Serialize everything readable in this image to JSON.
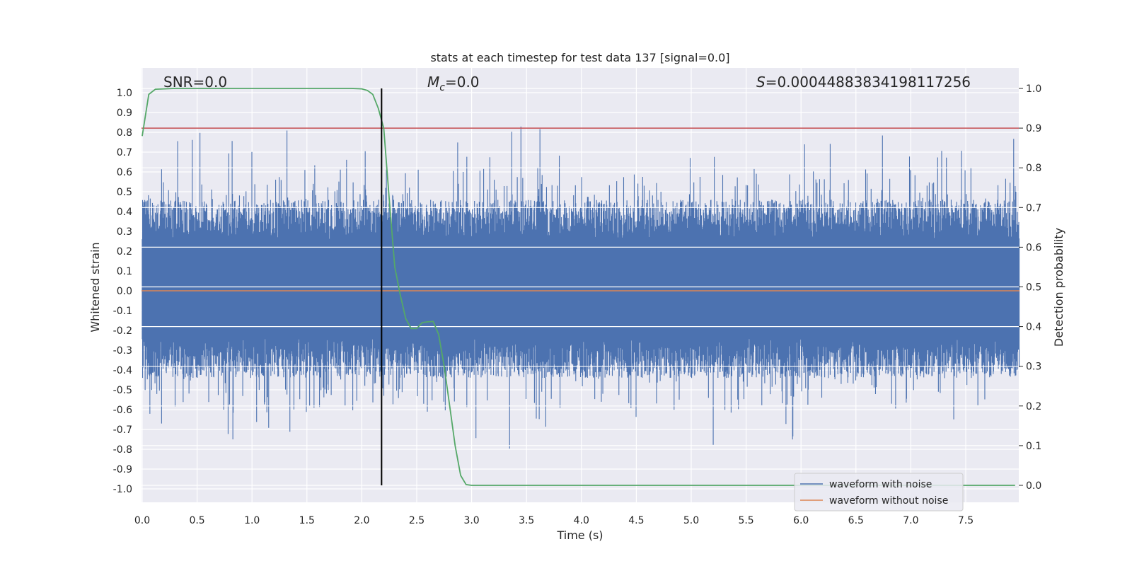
{
  "chart_data": {
    "type": "line",
    "title": "stats at each timestep for test data 137 [signal=0.0]",
    "xlabel": "Time (s)",
    "ylabel": "Whitened strain",
    "ylabel_right": "Detection probability",
    "xlim": [
      0,
      8
    ],
    "ylim": [
      -1.05,
      1.05
    ],
    "ylim_right": [
      -0.05,
      1.05
    ],
    "x_ticks": [
      "0.0",
      "0.5",
      "1.0",
      "1.5",
      "2.0",
      "2.5",
      "3.0",
      "3.5",
      "4.0",
      "4.5",
      "5.0",
      "5.5",
      "6.0",
      "6.5",
      "7.0",
      "7.5"
    ],
    "y_ticks": [
      "1.0",
      "0.9",
      "0.8",
      "0.7",
      "0.6",
      "0.5",
      "0.4",
      "0.3",
      "0.2",
      "0.1",
      "0.0",
      "-0.1",
      "-0.2",
      "-0.3",
      "-0.4",
      "-0.5",
      "-0.6",
      "-0.7",
      "-0.8",
      "-0.9",
      "-1.0"
    ],
    "y_ticks_right": [
      "1.0",
      "0.9",
      "0.8",
      "0.7",
      "0.6",
      "0.5",
      "0.4",
      "0.3",
      "0.2",
      "0.1",
      "0.0"
    ],
    "annotations": {
      "snr": "SNR=0.0",
      "mc_symbol": "M",
      "mc_sub": "c",
      "mc_value": "=0.0",
      "s_symbol": "S",
      "s_value": "=0.00044883834198117256"
    },
    "threshold_right": 0.9,
    "vertical_line_x": 2.18,
    "series": [
      {
        "name": "waveform with noise",
        "color": "#4c72b0",
        "description": "noisy whitened strain, amplitude mostly within ±0.5 with spikes to ±0.85"
      },
      {
        "name": "waveform without noise",
        "color": "#dd8452",
        "values": "constant 0.0"
      },
      {
        "name": "detection probability",
        "color": "#55a868",
        "axis": "right",
        "x": [
          0.0,
          0.06,
          0.12,
          0.3,
          0.6,
          1.0,
          1.5,
          1.9,
          2.0,
          2.05,
          2.1,
          2.15,
          2.2,
          2.25,
          2.3,
          2.35,
          2.4,
          2.45,
          2.5,
          2.55,
          2.6,
          2.65,
          2.7,
          2.75,
          2.8,
          2.85,
          2.9,
          2.95,
          3.0,
          3.5,
          4.0,
          5.0,
          6.0,
          7.0,
          7.95
        ],
        "y": [
          0.88,
          0.985,
          0.998,
          1.0,
          1.0,
          1.0,
          1.0,
          1.0,
          0.999,
          0.995,
          0.985,
          0.95,
          0.9,
          0.72,
          0.55,
          0.48,
          0.42,
          0.395,
          0.395,
          0.41,
          0.412,
          0.413,
          0.38,
          0.3,
          0.2,
          0.1,
          0.025,
          0.002,
          0.0,
          0.0,
          0.0,
          0.0,
          0.0,
          0.0,
          0.0
        ]
      }
    ]
  },
  "legend": {
    "noisy_label": "waveform with noise",
    "clean_label": "waveform without noise"
  }
}
